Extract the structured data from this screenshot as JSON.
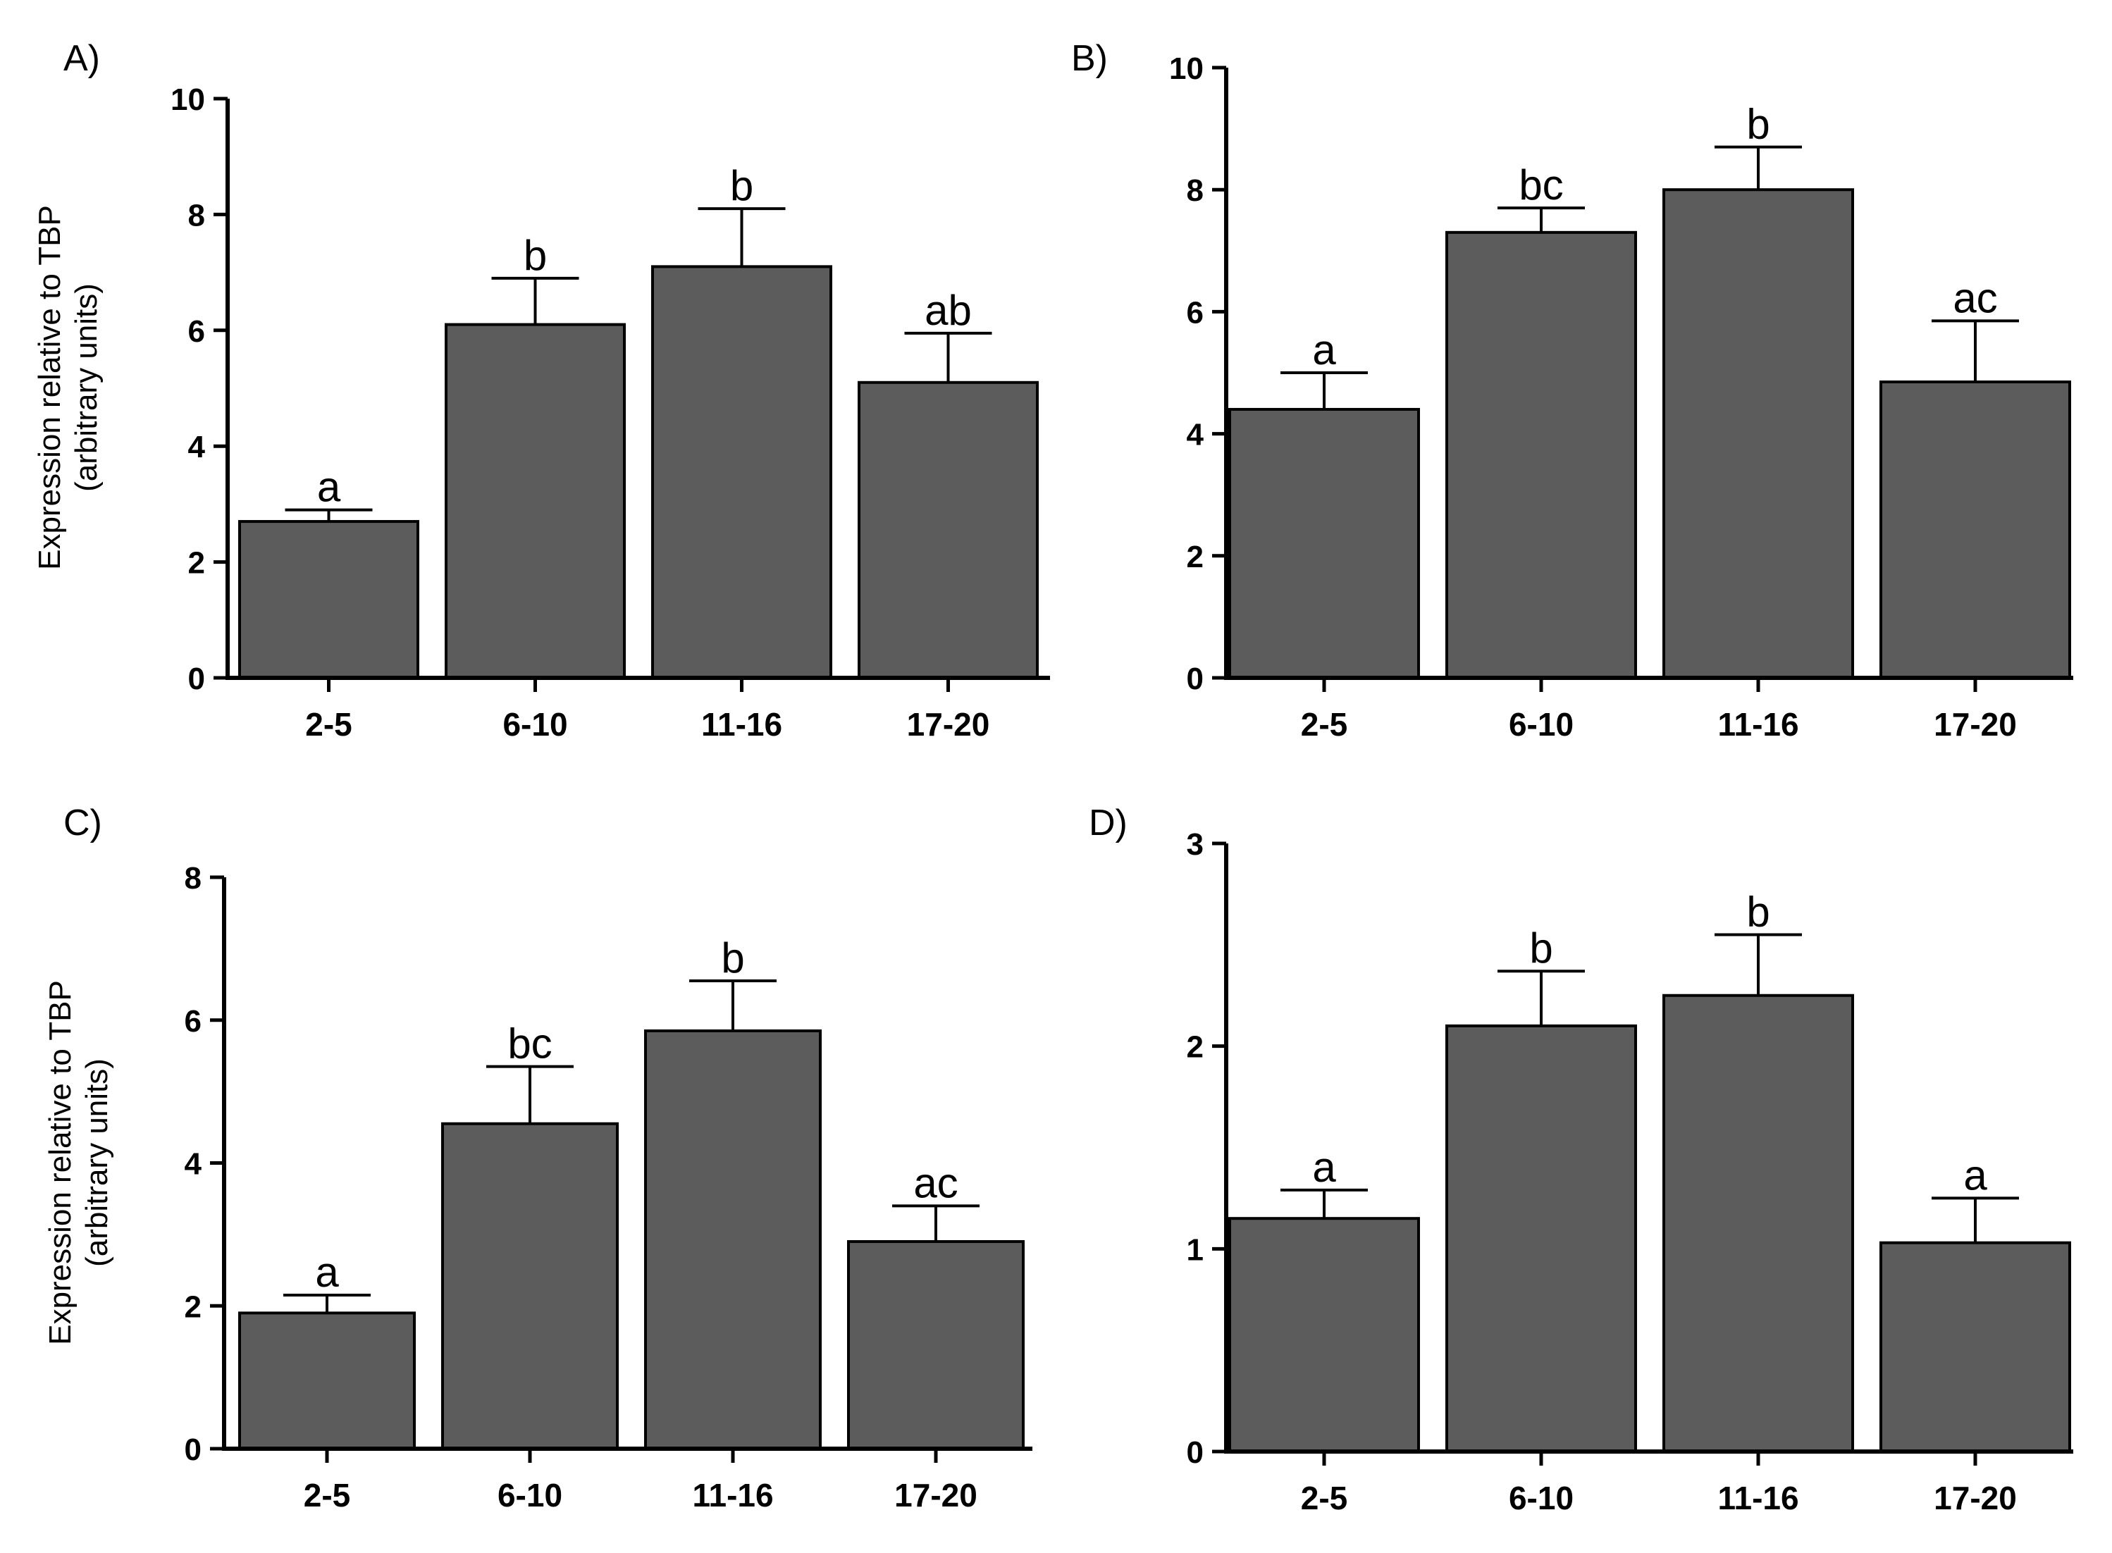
{
  "colors": {
    "bar_fill": "#5c5c5c",
    "bar_stroke": "#000000",
    "axis": "#000000"
  },
  "chart_data": [
    {
      "type": "bar",
      "panel_label": "A)",
      "ylabel_line1": "Expression relative to TBP",
      "ylabel_line2": "(arbitrary units)",
      "categories": [
        "2-5",
        "6-10",
        "11-16",
        "17-20"
      ],
      "values": [
        2.7,
        6.1,
        7.1,
        5.1
      ],
      "errors": [
        0.2,
        0.8,
        1.0,
        0.85
      ],
      "significance": [
        "a",
        "b",
        "b",
        "ab"
      ],
      "ylim": [
        0,
        10
      ],
      "yticks": [
        0,
        2,
        4,
        6,
        8,
        10
      ],
      "ytick_labels": [
        "0",
        "2",
        "4",
        "6",
        "8",
        "10"
      ]
    },
    {
      "type": "bar",
      "panel_label": "B)",
      "ylabel_line1": "",
      "ylabel_line2": "",
      "categories": [
        "2-5",
        "6-10",
        "11-16",
        "17-20"
      ],
      "values": [
        4.4,
        7.3,
        8.0,
        4.85
      ],
      "errors": [
        0.6,
        0.4,
        0.7,
        1.0
      ],
      "significance": [
        "a",
        "bc",
        "b",
        "ac"
      ],
      "ylim": [
        0,
        10
      ],
      "yticks": [
        0,
        2,
        4,
        6,
        8,
        10
      ],
      "ytick_labels": [
        "0",
        "2",
        "4",
        "6",
        "8",
        "10"
      ]
    },
    {
      "type": "bar",
      "panel_label": "C)",
      "ylabel_line1": "Expression relative to TBP",
      "ylabel_line2": "(arbitrary units)",
      "categories": [
        "2-5",
        "6-10",
        "11-16",
        "17-20"
      ],
      "values": [
        1.9,
        4.55,
        5.85,
        2.9
      ],
      "errors": [
        0.25,
        0.8,
        0.7,
        0.5
      ],
      "significance": [
        "a",
        "bc",
        "b",
        "ac"
      ],
      "ylim": [
        0,
        8
      ],
      "yticks": [
        0,
        2,
        4,
        6,
        8
      ],
      "ytick_labels": [
        "0",
        "2",
        "4",
        "6",
        "8"
      ]
    },
    {
      "type": "bar",
      "panel_label": "D)",
      "ylabel_line1": "",
      "ylabel_line2": "",
      "categories": [
        "2-5",
        "6-10",
        "11-16",
        "17-20"
      ],
      "values": [
        1.15,
        2.1,
        2.25,
        1.03
      ],
      "errors": [
        0.14,
        0.27,
        0.3,
        0.22
      ],
      "significance": [
        "a",
        "b",
        "b",
        "a"
      ],
      "ylim": [
        0,
        3
      ],
      "yticks": [
        0,
        1,
        2,
        3
      ],
      "ytick_labels": [
        "0",
        "1",
        "2",
        "3"
      ]
    }
  ]
}
